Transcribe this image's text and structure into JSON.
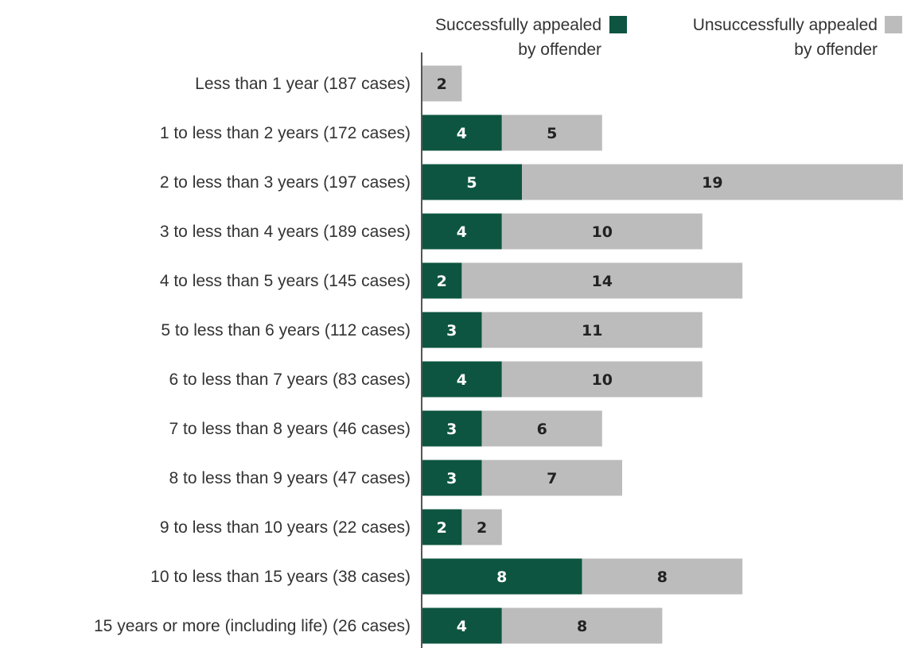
{
  "chart_data": {
    "type": "bar",
    "orientation": "horizontal",
    "stacked": true,
    "legend_position": "top-right",
    "grid": false,
    "xlim": [
      0,
      24
    ],
    "categories": [
      "Less than 1 year (187 cases)",
      "1 to less than 2 years (172 cases)",
      "2 to less than 3 years (197 cases)",
      "3 to less than 4 years (189 cases)",
      "4 to less than 5 years (145 cases)",
      "5 to less than 6 years (112 cases)",
      "6 to less than 7 years (83 cases)",
      "7 to less than 8 years (46 cases)",
      "8 to less than 9 years (47 cases)",
      "9 to less than 10 years (22 cases)",
      "10 to less than 15 years (38 cases)",
      "15 years or more (including life) (26 cases)"
    ],
    "series": [
      {
        "name": "Successfully appealed by offender",
        "legend_lines": [
          "Successfully appealed",
          "by offender"
        ],
        "color": "#0d5540",
        "label_color": "#ffffff",
        "values": [
          0,
          4,
          5,
          4,
          2,
          3,
          4,
          3,
          3,
          2,
          8,
          4
        ]
      },
      {
        "name": "Unsuccessfully appealed by offender",
        "legend_lines": [
          "Unsuccessfully appealed",
          "by offender"
        ],
        "color": "#bdbcbc",
        "label_color": "#222222",
        "values": [
          2,
          5,
          19,
          10,
          14,
          11,
          10,
          6,
          7,
          2,
          8,
          8
        ]
      }
    ],
    "axis_color": "#555555"
  }
}
